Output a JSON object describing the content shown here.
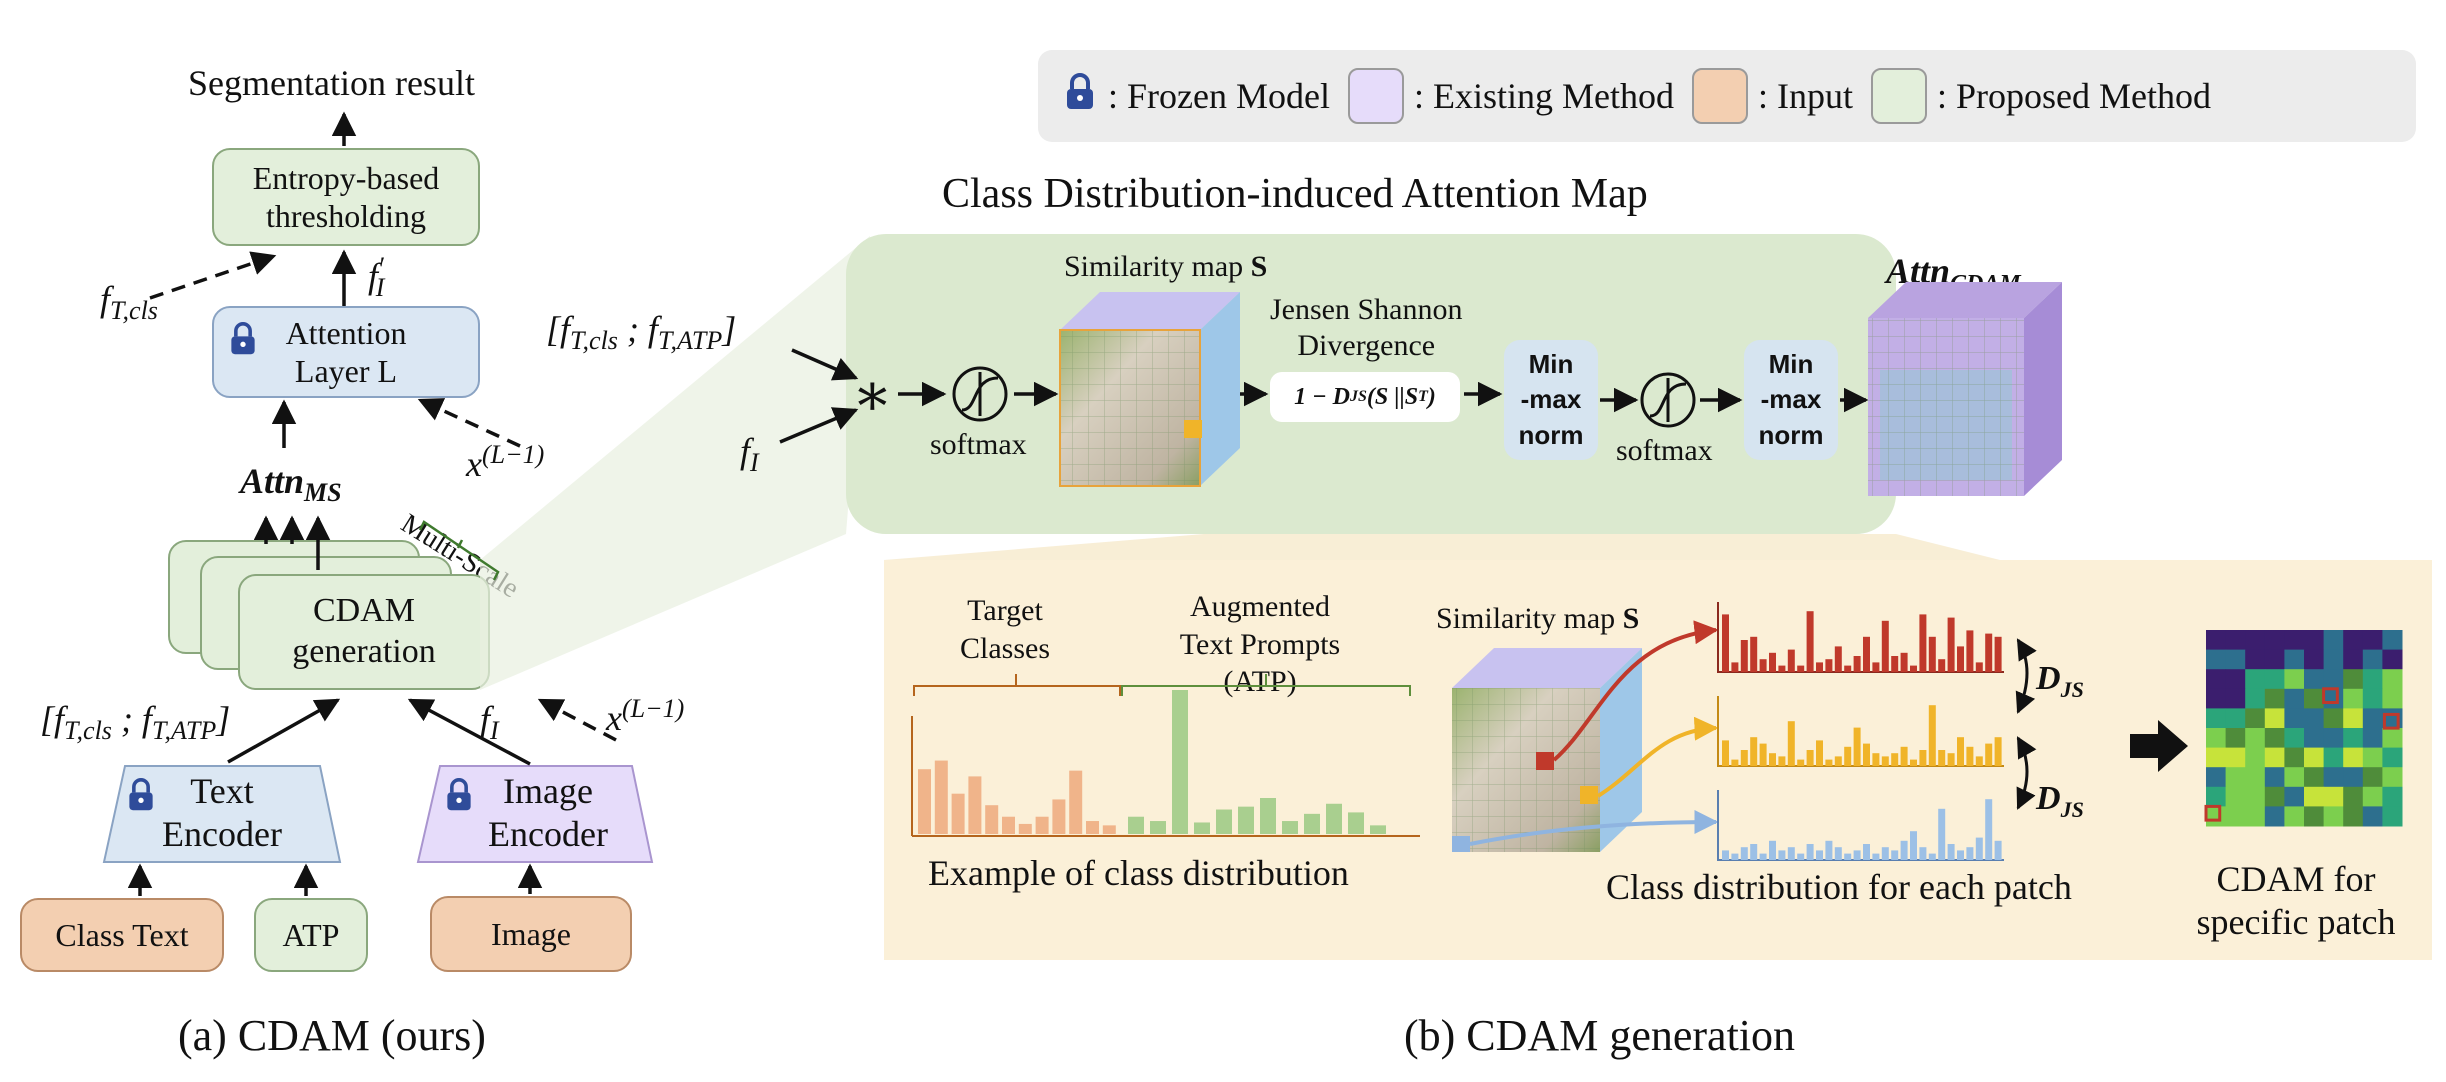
{
  "legend": {
    "frozen": ": Frozen Model",
    "existing": ": Existing Method",
    "input": ": Input",
    "proposed": ": Proposed Method",
    "colors": {
      "existing": "#e6dcfa",
      "input": "#f3cfb1",
      "proposed": "#e3efdb",
      "frozen_lock": "#2f4c9a"
    }
  },
  "left": {
    "segmentation_result": "Segmentation result",
    "entropy_line1": "Entropy-based",
    "entropy_line2": "thresholding",
    "f_t_cls": "f",
    "f_t_cls_sub": "T,cls",
    "f_i_prime": "f",
    "f_i_prime_sub": "I",
    "f_i_prime_sup": "′",
    "attention_line1": "Attention",
    "attention_line2": "Layer L",
    "x_l1": "x",
    "x_l1_sup": "(L−1)",
    "attn_ms": "Attn",
    "attn_ms_sub": "MS",
    "multi_scale": "Multi-Scale",
    "cdam_line1": "CDAM",
    "cdam_line2": "generation",
    "concat_label": "[f",
    "concat_sub1": "T,cls",
    "concat_mid": " ; f",
    "concat_sub2": "T,ATP",
    "concat_end": "]",
    "f_i": "f",
    "f_i_sub": "I",
    "text_encoder_1": "Text",
    "text_encoder_2": "Encoder",
    "image_encoder_1": "Image",
    "image_encoder_2": "Encoder",
    "class_text": "Class Text",
    "atp": "ATP",
    "image": "Image",
    "caption": "(a) CDAM (ours)"
  },
  "right": {
    "title": "Class Distribution-induced Attention Map",
    "concat_label": "[f",
    "concat_sub1": "T,cls",
    "concat_mid": " ; f",
    "concat_sub2": "T,ATP",
    "concat_end": "]",
    "f_i": "f",
    "f_i_sub": "I",
    "star": "∗",
    "softmax1": "softmax",
    "similarity_map": "Similarity map ",
    "similarity_S": "S",
    "jsd_line1": "Jensen Shannon",
    "jsd_line2": "Divergence",
    "jsd_formula": "1 − D",
    "jsd_sub": "JS",
    "jsd_arg": "(S ||S",
    "jsd_sup": "T",
    "jsd_close": ")",
    "minmax1": [
      "Min",
      "-max",
      "norm"
    ],
    "softmax2": "softmax",
    "minmax2": [
      "Min",
      "-max",
      "norm"
    ],
    "attn_cdam": "Attn",
    "attn_cdam_sub": "CDAM",
    "caption": "(b) CDAM generation"
  },
  "bottom": {
    "target_classes_1": "Target",
    "target_classes_2": "Classes",
    "atp_1": "Augmented",
    "atp_2": "Text Prompts (ATP)",
    "example_caption": "Example of class distribution",
    "similarity_map": "Similarity map ",
    "similarity_S": "S",
    "d_js": "D",
    "d_js_sub": "JS",
    "patch_caption": "Class distribution for each patch",
    "cdam_patch_1": "CDAM for",
    "cdam_patch_2": "specific patch",
    "class_distribution_orange": [
      0.45,
      0.51,
      0.28,
      0.4,
      0.2,
      0.12,
      0.07,
      0.12,
      0.24,
      0.44,
      0.09,
      0.06
    ],
    "class_distribution_green": [
      0.12,
      0.09,
      1.0,
      0.08,
      0.17,
      0.19,
      0.25,
      0.09,
      0.14,
      0.21,
      0.15,
      0.06
    ],
    "patch_red": [
      0.9,
      0.15,
      0.5,
      0.55,
      0.2,
      0.3,
      0.1,
      0.35,
      0.1,
      0.95,
      0.15,
      0.2,
      0.4,
      0.1,
      0.25,
      0.55,
      0.15,
      0.8,
      0.25,
      0.3,
      0.1,
      0.9,
      0.55,
      0.2,
      0.85,
      0.4,
      0.65,
      0.15,
      0.6,
      0.55
    ],
    "patch_yellow": [
      0.4,
      0.1,
      0.25,
      0.45,
      0.35,
      0.2,
      0.15,
      0.7,
      0.1,
      0.25,
      0.4,
      0.1,
      0.15,
      0.3,
      0.6,
      0.35,
      0.2,
      0.15,
      0.2,
      0.3,
      0.1,
      0.25,
      0.95,
      0.25,
      0.2,
      0.45,
      0.3,
      0.15,
      0.35,
      0.45
    ],
    "patch_blue": [
      0.15,
      0.1,
      0.2,
      0.25,
      0.1,
      0.3,
      0.15,
      0.2,
      0.1,
      0.25,
      0.15,
      0.3,
      0.2,
      0.1,
      0.15,
      0.25,
      0.1,
      0.2,
      0.15,
      0.3,
      0.45,
      0.2,
      0.1,
      0.8,
      0.25,
      0.15,
      0.2,
      0.35,
      0.95,
      0.3
    ]
  }
}
